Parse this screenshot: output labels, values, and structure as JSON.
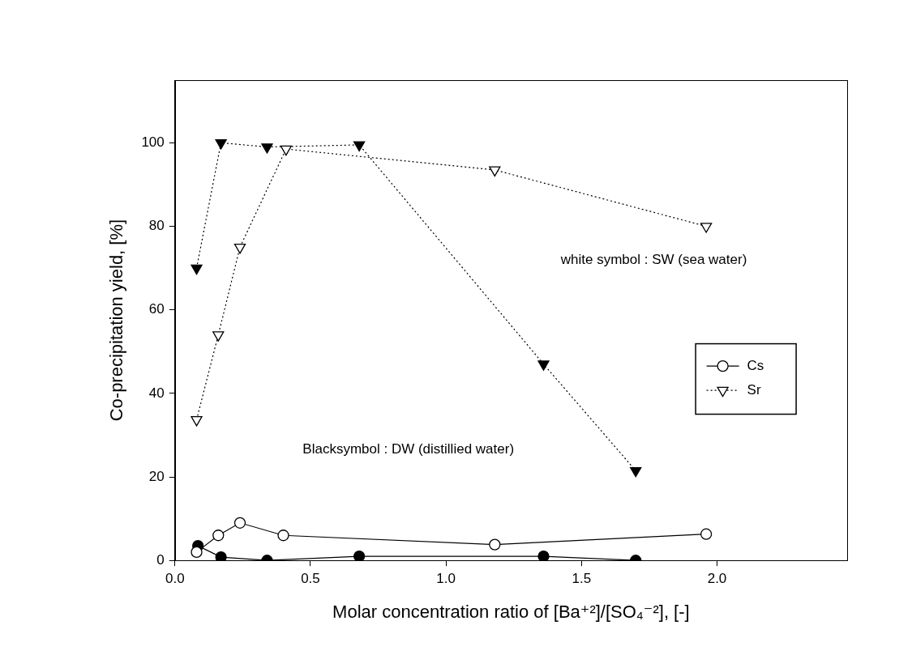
{
  "chart_data": {
    "type": "scatter",
    "x_label": "Molar concentration ratio of [Ba⁺²]/[SO₄⁻²], [-]",
    "y_label": "Co-precipitation yield, [%]",
    "annotations": [
      "white symbol : SW (sea water)",
      "Blacksymbol : DW (distillied water)"
    ],
    "xlim": [
      0,
      2.48
    ],
    "ylim": [
      0,
      115
    ],
    "xticks": [
      {
        "value": 0,
        "label": "0.0"
      },
      0.5,
      {
        "value": 1,
        "label": "1.0"
      },
      1.5,
      {
        "value": 2,
        "label": "2.0"
      }
    ],
    "yticks": [
      0,
      20,
      40,
      60,
      80,
      100
    ],
    "grid": false,
    "legend": "right",
    "series": [
      {
        "name": "Cs",
        "color": "#ffffff",
        "marker": "circle",
        "line_style": "solid",
        "x": [
          0.08,
          0.16,
          0.24,
          0.4,
          1.18,
          1.96
        ],
        "values": [
          2,
          6,
          9,
          6,
          3.8,
          6.3
        ]
      },
      {
        "name": "Cs",
        "color": "#000000",
        "marker": "circle",
        "line_style": "solid",
        "x": [
          0.085,
          0.17,
          0.34,
          0.68,
          1.36,
          1.7
        ],
        "values": [
          3.5,
          0.8,
          0,
          1,
          1,
          0
        ]
      },
      {
        "name": "Sr",
        "color": "#ffffff",
        "marker": "triangle_down",
        "line_style": "dotted",
        "x": [
          0.08,
          0.16,
          0.24,
          0.41,
          1.18,
          1.96
        ],
        "values": [
          33.7,
          54,
          75,
          98.5,
          93.5,
          80
        ]
      },
      {
        "name": "Sr",
        "color": "#000000",
        "marker": "triangle_down",
        "line_style": "dotted",
        "x": [
          0.08,
          0.17,
          0.34,
          0.68,
          1.36,
          1.7
        ],
        "values": [
          70,
          100,
          99,
          99.5,
          47,
          21.5
        ]
      }
    ]
  }
}
